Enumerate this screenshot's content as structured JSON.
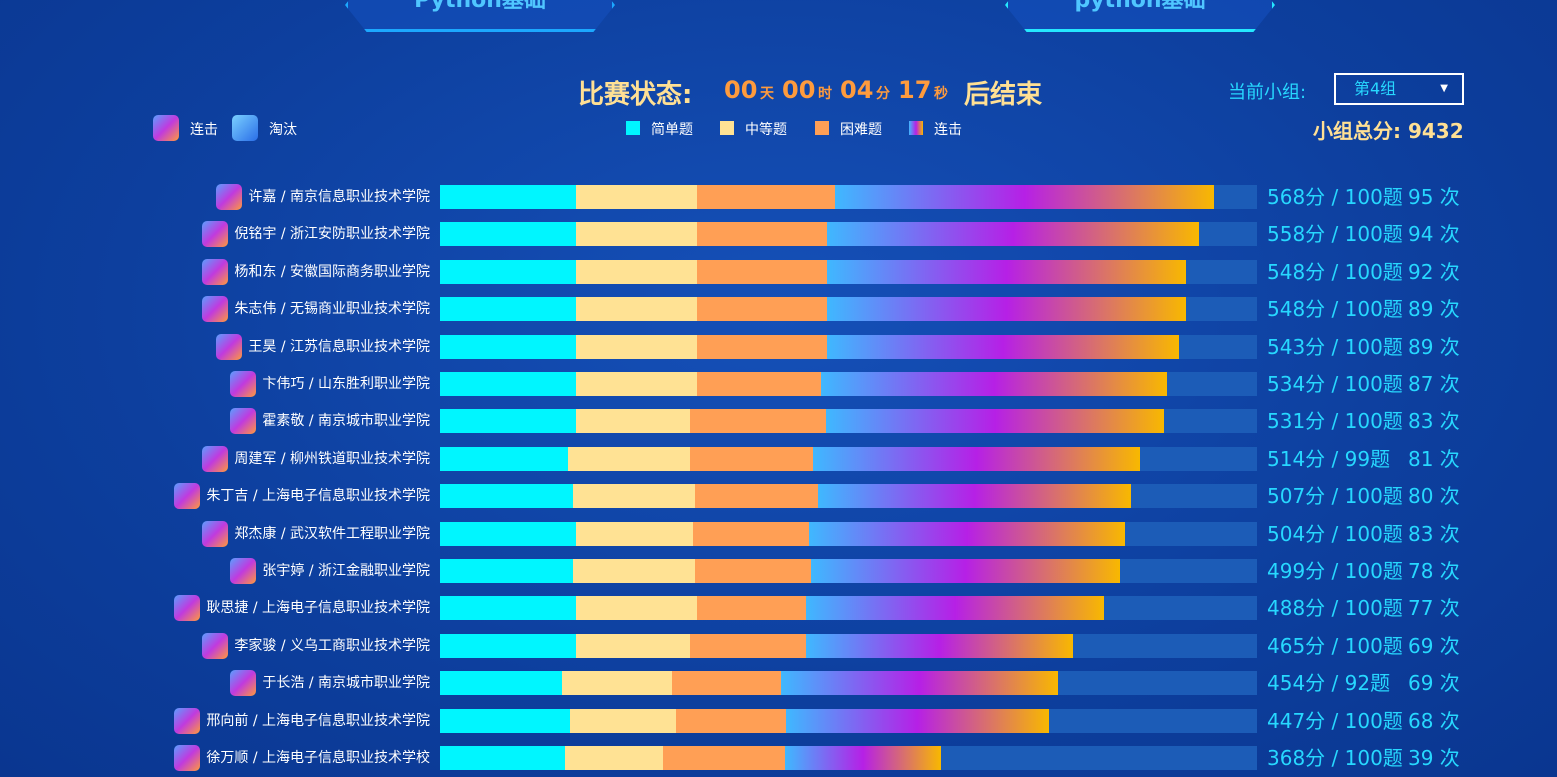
{
  "tabs": [
    "Python基础",
    "python基础"
  ],
  "status": {
    "label": "比赛状态:",
    "days": "00",
    "days_unit": "天",
    "hours": "00",
    "hours_unit": "时",
    "minutes": "04",
    "minutes_unit": "分",
    "seconds": "17",
    "seconds_unit": "秒",
    "suffix": "后结束"
  },
  "group": {
    "label": "当前小组:",
    "selected": "第4组",
    "total_label": "小组总分:",
    "total": "9432"
  },
  "icon_legend": [
    "连击",
    "淘汰"
  ],
  "chart_data": {
    "type": "bar",
    "orientation": "horizontal",
    "stacked": true,
    "xlim": [
      0,
      100
    ],
    "categories": [
      "许嘉 / 南京信息职业技术学院",
      "倪铭宇 / 浙江安防职业技术学院",
      "杨和东 / 安徽国际商务职业学院",
      "朱志伟 / 无锡商业职业技术学院",
      "王昊 / 江苏信息职业技术学院",
      "卞伟巧 / 山东胜利职业学院",
      "霍素敬 / 南京城市职业学院",
      "周建军 / 柳州铁道职业技术学院",
      "朱丁吉 / 上海电子信息职业技术学院",
      "郑杰康 / 武汉软件工程职业学院",
      "张宇婷 / 浙江金融职业学院",
      "耿思捷 / 上海电子信息职业技术学院",
      "李家骏 / 义乌工商职业技术学院",
      "于长浩 / 南京城市职业学院",
      "邢向前 / 上海电子信息职业技术学院",
      "徐万顺 / 上海电子信息职业技术学校"
    ],
    "series": [
      {
        "name": "简单题",
        "color": "#00f6ff",
        "values": [
          16.6,
          16.6,
          16.6,
          16.6,
          16.6,
          16.6,
          16.6,
          15.7,
          16.3,
          16.6,
          16.3,
          16.6,
          16.6,
          14.9,
          15.9,
          15.3
        ]
      },
      {
        "name": "中等题",
        "color": "#ffe294",
        "values": [
          14.9,
          14.9,
          14.9,
          14.9,
          14.9,
          14.9,
          14.0,
          14.9,
          14.9,
          14.4,
          14.9,
          14.9,
          14.0,
          13.5,
          13.0,
          12.0
        ]
      },
      {
        "name": "困难题",
        "color": "#ff9f55",
        "values": [
          16.8,
          15.9,
          15.9,
          15.9,
          15.9,
          15.1,
          16.6,
          15.1,
          15.1,
          14.2,
          14.2,
          13.3,
          14.2,
          13.3,
          13.4,
          14.9
        ]
      },
      {
        "name": "连击",
        "color": "linear-gradient(90deg,#3fb8ff,#b620e6,#f8b800)",
        "values": [
          46.4,
          45.5,
          43.9,
          43.9,
          43.1,
          42.4,
          41.4,
          40.0,
          38.3,
          38.7,
          37.8,
          36.5,
          32.7,
          33.9,
          32.3,
          19.1
        ]
      }
    ],
    "score_labels": [
      "568分 / 100题",
      "558分 / 100题",
      "548分 / 100题",
      "548分 / 100题",
      "543分 / 100题",
      "534分 / 100题",
      "531分 / 100题",
      "514分 / 99题",
      "507分 / 100题",
      "504分 / 100题",
      "499分 / 100题",
      "488分 / 100题",
      "465分 / 100题",
      "454分 / 92题",
      "447分 / 100题",
      "368分 / 100题"
    ],
    "count_labels": [
      "95 次",
      "94 次",
      "92 次",
      "89 次",
      "89 次",
      "87 次",
      "83 次",
      "81 次",
      "80 次",
      "83 次",
      "78 次",
      "77 次",
      "69 次",
      "69 次",
      "68 次",
      "39 次"
    ]
  }
}
